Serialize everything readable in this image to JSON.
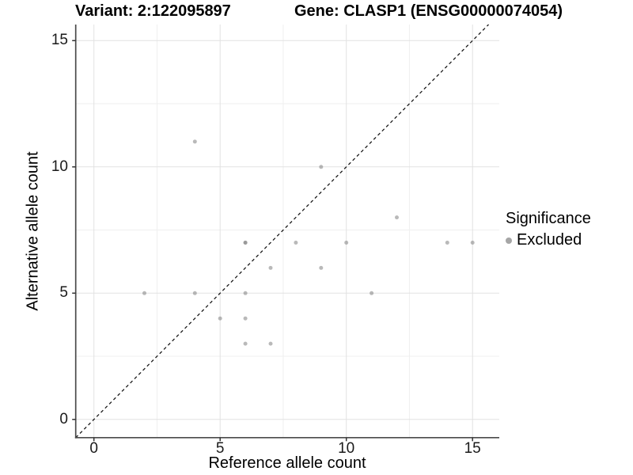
{
  "chart_data": {
    "type": "scatter",
    "titles": {
      "left": "Variant: 2:122095897",
      "right": "Gene: CLASP1 (ENSG00000074054)"
    },
    "xlabel": "Reference allele count",
    "ylabel": "Alternative allele count",
    "xlim": [
      -0.73,
      16.05
    ],
    "ylim": [
      -0.72,
      15.67
    ],
    "x_ticks": [
      0,
      5,
      10,
      15
    ],
    "y_ticks": [
      0,
      5,
      10,
      15
    ],
    "x_tick_labels": [
      "0",
      "5",
      "10",
      "15"
    ],
    "y_tick_labels": [
      "0",
      "5",
      "10",
      "15"
    ],
    "x_minor_ticks": [
      2.5,
      7.5,
      12.5
    ],
    "y_minor_ticks": [
      2.5,
      7.5,
      12.5
    ],
    "grid": "major+minor",
    "identity_line": {
      "style": "dashed",
      "slope": 1,
      "intercept": 0
    },
    "series": [
      {
        "name": "Excluded",
        "color": "#808080",
        "opacity": 0.55,
        "marker_radius": 2.5,
        "points": [
          [
            2,
            5
          ],
          [
            4,
            5
          ],
          [
            4,
            11
          ],
          [
            5,
            4
          ],
          [
            6,
            3
          ],
          [
            6,
            4
          ],
          [
            6,
            5
          ],
          [
            6,
            7
          ],
          [
            6,
            7
          ],
          [
            7,
            3
          ],
          [
            7,
            6
          ],
          [
            8,
            7
          ],
          [
            9,
            6
          ],
          [
            9,
            10
          ],
          [
            10,
            7
          ],
          [
            11,
            5
          ],
          [
            12,
            8
          ],
          [
            14,
            7
          ],
          [
            15,
            7
          ]
        ]
      }
    ],
    "legend": {
      "title": "Significance",
      "position": "right",
      "items": [
        {
          "label": "Excluded",
          "marker_color": "#a6a6a6"
        }
      ]
    },
    "colors": {
      "grid_major": "#e2e2e2",
      "grid_minor": "#efefef",
      "axis": "#4a4a4a",
      "tick": "#333333",
      "identity_line": "#1a1a1a",
      "text": "#000000"
    }
  }
}
